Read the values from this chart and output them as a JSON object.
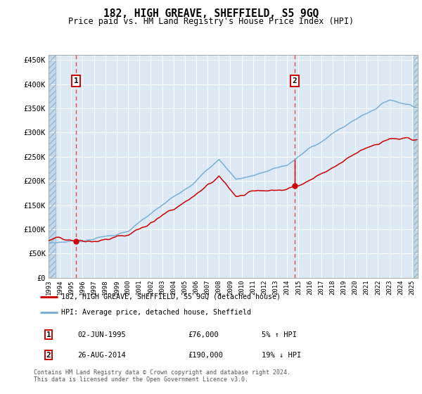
{
  "title": "182, HIGH GREAVE, SHEFFIELD, S5 9GQ",
  "subtitle": "Price paid vs. HM Land Registry's House Price Index (HPI)",
  "hpi_label": "HPI: Average price, detached house, Sheffield",
  "property_label": "182, HIGH GREAVE, SHEFFIELD, S5 9GQ (detached house)",
  "sale1_date_num": 1995.42,
  "sale1_price": 76000,
  "sale1_label": "02-JUN-1995",
  "sale1_pct": "5% ↑ HPI",
  "sale2_date_num": 2014.65,
  "sale2_price": 190000,
  "sale2_label": "26-AUG-2014",
  "sale2_pct": "19% ↓ HPI",
  "ylim": [
    0,
    460000
  ],
  "xlim_start": 1993.0,
  "xlim_end": 2025.5,
  "hpi_color": "#7bafd4",
  "property_color": "#cc0000",
  "dashed_color": "#e05050",
  "bg_color": "#dce9f5",
  "hatch_color": "#c0d8ea",
  "grid_color": "#ffffff",
  "footer": "Contains HM Land Registry data © Crown copyright and database right 2024.\nThis data is licensed under the Open Government Licence v3.0.",
  "yticks": [
    0,
    50000,
    100000,
    150000,
    200000,
    250000,
    300000,
    350000,
    400000,
    450000
  ],
  "ytick_labels": [
    "£0",
    "£50K",
    "£100K",
    "£150K",
    "£200K",
    "£250K",
    "£300K",
    "£350K",
    "£400K",
    "£450K"
  ],
  "xticks": [
    1993,
    1994,
    1995,
    1996,
    1997,
    1998,
    1999,
    2000,
    2001,
    2002,
    2003,
    2004,
    2005,
    2006,
    2007,
    2008,
    2009,
    2010,
    2011,
    2012,
    2013,
    2014,
    2015,
    2016,
    2017,
    2018,
    2019,
    2020,
    2021,
    2022,
    2023,
    2024,
    2025
  ],
  "hatch_left_end": 1993.6,
  "hatch_right_start": 2025.1
}
